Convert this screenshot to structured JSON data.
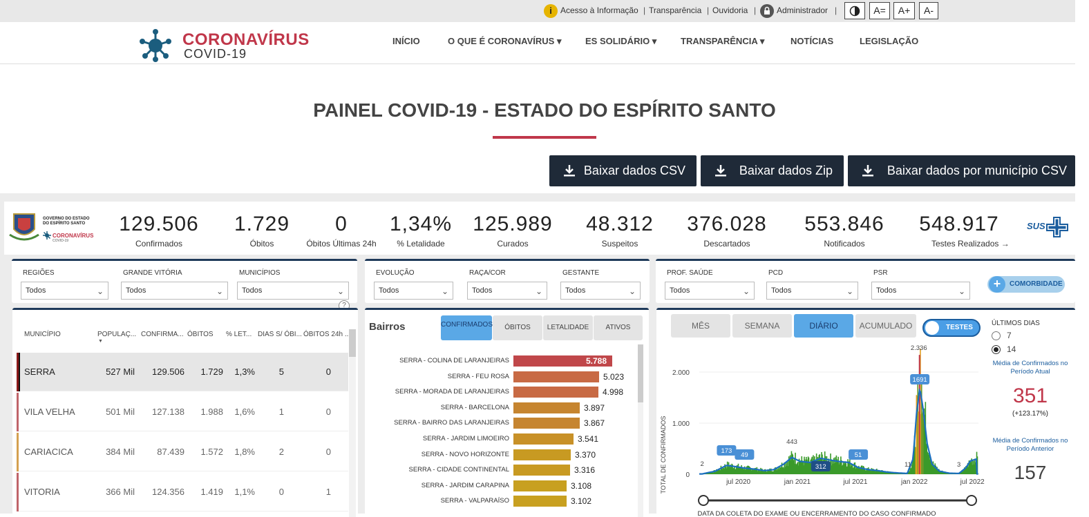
{
  "topbar": {
    "links": [
      "Acesso à Informação",
      "Transparência",
      "Ouvidoria",
      "Administrador"
    ],
    "contrast_icon": "contrast-icon",
    "font_buttons": [
      "A=",
      "A+",
      "A-"
    ]
  },
  "brand": {
    "name": "CORONAVÍRUS",
    "sub": "COVID-19"
  },
  "nav": [
    "INÍCIO",
    "O QUE É CORONAVÍRUS ▾",
    "ES SOLIDÁRIO ▾",
    "TRANSPARÊNCIA ▾",
    "NOTÍCIAS",
    "LEGISLAÇÃO"
  ],
  "page_title": "PAINEL COVID-19 - ESTADO DO ESPÍRITO SANTO",
  "downloads": [
    "Baixar dados CSV",
    "Baixar dados Zip",
    "Baixar dados por município CSV"
  ],
  "gov": {
    "line1": "GOVERNO DO ESTADO",
    "line2": "DO ESPÍRITO SANTO",
    "brand": "CORONAVÍRUS",
    "sub": "COVID-19"
  },
  "kpis": [
    {
      "value": "129.506",
      "label": "Confirmados"
    },
    {
      "value": "1.729",
      "label": "Óbitos"
    },
    {
      "value": "0",
      "label": "Óbitos Últimas 24h"
    },
    {
      "value": "1,34%",
      "label": "% Letalidade"
    },
    {
      "value": "125.989",
      "label": "Curados"
    },
    {
      "value": "48.312",
      "label": "Suspeitos"
    },
    {
      "value": "376.028",
      "label": "Descartados"
    },
    {
      "value": "553.846",
      "label": "Notificados"
    },
    {
      "value": "548.917",
      "label": "Testes Realizados →"
    }
  ],
  "sus_logo": "SUS",
  "filters": {
    "group1": [
      {
        "label": "REGIÕES",
        "value": "Todos"
      },
      {
        "label": "GRANDE VITÓRIA",
        "value": "Todos"
      },
      {
        "label": "MUNICÍPIOS",
        "value": "Todos"
      }
    ],
    "group2": [
      {
        "label": "EVOLUÇÃO",
        "value": "Todos"
      },
      {
        "label": "RAÇA/COR",
        "value": "Todos"
      },
      {
        "label": "GESTANTE",
        "value": "Todos"
      }
    ],
    "group3": [
      {
        "label": "PROF. SAÚDE",
        "value": "Todos"
      },
      {
        "label": "PCD",
        "value": "Todos"
      },
      {
        "label": "PSR",
        "value": "Todos"
      }
    ],
    "comorbidade": "COMORBIDADE",
    "help": "?"
  },
  "table": {
    "headers": [
      "MUNICÍPIO",
      "POPULAÇ...",
      "CONFIRMA...",
      "ÓBITOS",
      "% LET...",
      "DIAS S/ ÓBI...",
      "ÓBITOS 24h ..."
    ],
    "rows": [
      {
        "name": "SERRA",
        "pop": "527 Mil",
        "conf": "129.506",
        "ob": "1.729",
        "let": "1,3%",
        "dias": "5",
        "ob24": "0",
        "color": "#8b1a1a"
      },
      {
        "name": "VILA VELHA",
        "pop": "501 Mil",
        "conf": "127.138",
        "ob": "1.988",
        "let": "1,6%",
        "dias": "1",
        "ob24": "0",
        "color": "#c0646a"
      },
      {
        "name": "CARIACICA",
        "pop": "384 Mil",
        "conf": "87.439",
        "ob": "1.572",
        "let": "1,8%",
        "dias": "2",
        "ob24": "0",
        "color": "#d4a050"
      },
      {
        "name": "VITORIA",
        "pop": "366 Mil",
        "conf": "124.356",
        "ob": "1.419",
        "let": "1,1%",
        "dias": "0",
        "ob24": "1",
        "color": "#c0646a"
      }
    ]
  },
  "bairros": {
    "title": "Bairros",
    "tabs": [
      "CONFIRMADOS",
      "ÓBITOS",
      "LETALIDADE",
      "ATIVOS"
    ],
    "items": [
      {
        "name": "SERRA - COLINA DE LARANJEIRAS",
        "value": 5788,
        "label": "5.788",
        "color": "#c0474a"
      },
      {
        "name": "SERRA - FEU ROSA",
        "value": 5023,
        "label": "5.023",
        "color": "#c86a44"
      },
      {
        "name": "SERRA - MORADA DE LARANJEIRAS",
        "value": 4998,
        "label": "4.998",
        "color": "#c86a44"
      },
      {
        "name": "SERRA - BARCELONA",
        "value": 3897,
        "label": "3.897",
        "color": "#c68530"
      },
      {
        "name": "SERRA - BAIRRO DAS LARANJEIRAS",
        "value": 3867,
        "label": "3.867",
        "color": "#c68530"
      },
      {
        "name": "SERRA - JARDIM LIMOEIRO",
        "value": 3541,
        "label": "3.541",
        "color": "#c89128"
      },
      {
        "name": "SERRA - NOVO HORIZONTE",
        "value": 3370,
        "label": "3.370",
        "color": "#c89a22"
      },
      {
        "name": "SERRA - CIDADE CONTINENTAL",
        "value": 3316,
        "label": "3.316",
        "color": "#c89a22"
      },
      {
        "name": "SERRA - JARDIM CARAPINA",
        "value": 3108,
        "label": "3.108",
        "color": "#c8a020"
      },
      {
        "name": "SERRA - VALPARAÍSO",
        "value": 3102,
        "label": "3.102",
        "color": "#c8a020"
      }
    ]
  },
  "timechart": {
    "tabs": [
      "MÊS",
      "SEMANA",
      "DIÁRIO",
      "ACUMULADO"
    ],
    "toggle": "TESTES",
    "ylabel": "TOTAL DE CONFIRMADOS",
    "xlabel": "DATA DA COLETA DO EXAME OU ENCERRAMENTO DO CASO CONFIRMADO",
    "annotations": [
      "2",
      "173",
      "49",
      "443",
      "312",
      "51",
      "11",
      "2.336",
      "1691",
      "3"
    ]
  },
  "chart_data": {
    "type": "area",
    "title": "",
    "ylabel": "TOTAL DE CONFIRMADOS",
    "xlabel": "DATA DA COLETA DO EXAME OU ENCERRAMENTO DO CASO CONFIRMADO",
    "ylim": [
      0,
      2500
    ],
    "yticks": [
      "0",
      "1.000",
      "2.000"
    ],
    "xticks": [
      "jul 2020",
      "jan 2021",
      "jul 2021",
      "jan 2022",
      "jul 2022"
    ],
    "series": [
      {
        "name": "",
        "points": [
          [
            "2020-03",
            2
          ],
          [
            "2020-05",
            173
          ],
          [
            "2020-07",
            49
          ],
          [
            "2020-12",
            443
          ],
          [
            "2021-03",
            312
          ],
          [
            "2021-07",
            51
          ],
          [
            "2021-12",
            11
          ],
          [
            "2022-01",
            2336
          ],
          [
            "2022-01",
            1691
          ],
          [
            "2022-05",
            3
          ]
        ]
      }
    ]
  },
  "sidepanel": {
    "title": "ÚLTIMOS DIAS",
    "options": [
      "7",
      "14"
    ],
    "current_label": "Média de Confirmados no Período Atual",
    "current_value": "351",
    "current_change": "(+123.17%)",
    "previous_label": "Média de Confirmados no Período Anterior",
    "previous_value": "157"
  },
  "colors": {
    "accent_red": "#c0374a",
    "navy": "#1f2a38",
    "tab_active": "#5aa8e6"
  }
}
